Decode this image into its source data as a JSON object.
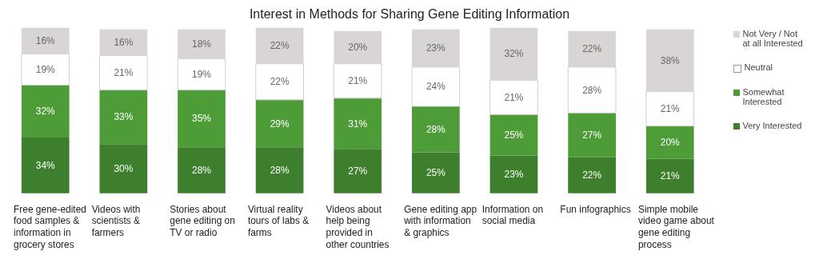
{
  "chart_data": {
    "type": "bar",
    "title": "Interest in Methods for Sharing Gene Editing Information",
    "stacked": true,
    "legend": "right",
    "grid": false,
    "categories": [
      "Free gene-edited food samples & information in grocery stores",
      "Videos with scientists & farmers",
      "Stories about gene editing on TV or radio",
      "Virtual reality tours of labs & farms",
      "Videos about help being provided in other countries",
      "Gene editing app with information & graphics",
      "Information on social media",
      "Fun infographics",
      "Simple mobile video game about gene editing process"
    ],
    "series": [
      {
        "name": "Very Interested",
        "color": "#3d7f2c",
        "values": [
          34,
          30,
          28,
          28,
          27,
          25,
          23,
          22,
          21
        ],
        "value_labels": [
          "34%",
          "30%",
          "28%",
          "28%",
          "27%",
          "25%",
          "23%",
          "22%",
          "21%"
        ]
      },
      {
        "name": "Somewhat Interested",
        "color": "#4e9c38",
        "values": [
          32,
          33,
          35,
          29,
          31,
          28,
          25,
          27,
          20
        ],
        "value_labels": [
          "32%",
          "33%",
          "35%",
          "29%",
          "31%",
          "28%",
          "25%",
          "27%",
          "20%"
        ]
      },
      {
        "name": "Neutral",
        "color": "#ffffff",
        "values": [
          19,
          21,
          19,
          22,
          21,
          24,
          21,
          28,
          21
        ],
        "value_labels": [
          "19%",
          "21%",
          "19%",
          "22%",
          "21%",
          "24%",
          "21%",
          "28%",
          "21%"
        ]
      },
      {
        "name": "Not Very / Not at all Interested",
        "color": "#d9d5d5",
        "values": [
          16,
          16,
          18,
          22,
          20,
          23,
          32,
          22,
          38
        ],
        "value_labels": [
          "16%",
          "16%",
          "18%",
          "22%",
          "20%",
          "23%",
          "32%",
          "22%",
          "38%"
        ]
      }
    ]
  }
}
